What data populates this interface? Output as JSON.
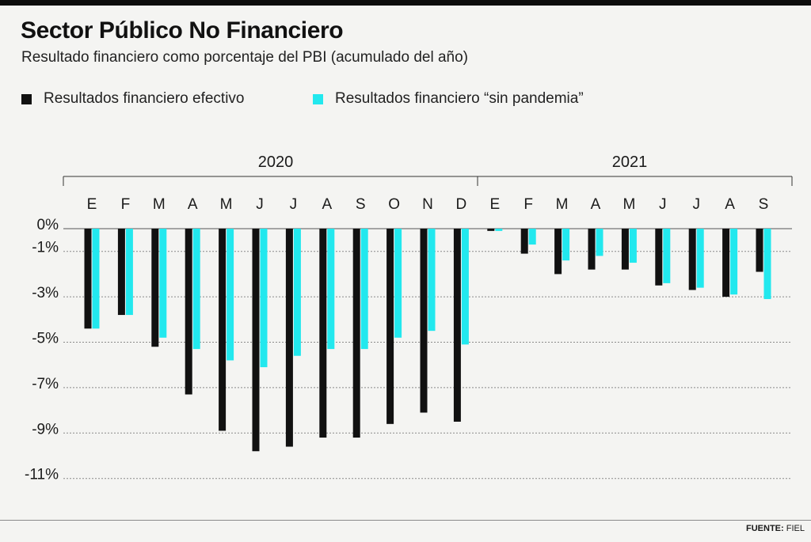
{
  "header": {
    "title": "Sector Público No Financiero",
    "subtitle": "Resultado financiero como porcentaje del PBI (acumulado del año)"
  },
  "source": {
    "label": "FUENTE:",
    "value": "FIEL"
  },
  "chart_data": {
    "type": "bar",
    "title": "Sector Público No Financiero",
    "subtitle": "Resultado financiero como porcentaje del PBI (acumulado del año)",
    "legend_position": "top-left",
    "grid": true,
    "ylim": [
      -11.5,
      0
    ],
    "yticks": [
      0,
      -1,
      -3,
      -5,
      -7,
      -9,
      -11
    ],
    "ytick_labels": [
      "0%",
      "-1%",
      "-3%",
      "-5%",
      "-7%",
      "-9%",
      "-11%"
    ],
    "year_groups": [
      {
        "label": "2020",
        "start": 0,
        "end": 11
      },
      {
        "label": "2021",
        "start": 12,
        "end": 20
      }
    ],
    "categories": [
      "E",
      "F",
      "M",
      "A",
      "M",
      "J",
      "J",
      "A",
      "S",
      "O",
      "N",
      "D",
      "E",
      "F",
      "M",
      "A",
      "M",
      "J",
      "J",
      "A",
      "S"
    ],
    "series": [
      {
        "name": "Resultados financiero efectivo",
        "color": "#111111",
        "values": [
          -4.4,
          -3.8,
          -5.2,
          -7.3,
          -8.9,
          -9.8,
          -9.6,
          -9.2,
          -9.2,
          -8.6,
          -8.1,
          -8.5,
          -0.1,
          -1.1,
          -2.0,
          -1.8,
          -1.8,
          -2.5,
          -2.7,
          -3.0,
          -1.9
        ]
      },
      {
        "name": "Resultados financiero “sin pandemia”",
        "color": "#22e8ee",
        "values": [
          -4.4,
          -3.8,
          -4.8,
          -5.3,
          -5.8,
          -6.1,
          -5.6,
          -5.3,
          -5.3,
          -4.8,
          -4.5,
          -5.1,
          -0.1,
          -0.7,
          -1.4,
          -1.2,
          -1.5,
          -2.4,
          -2.6,
          -2.9,
          -3.1
        ]
      }
    ]
  }
}
